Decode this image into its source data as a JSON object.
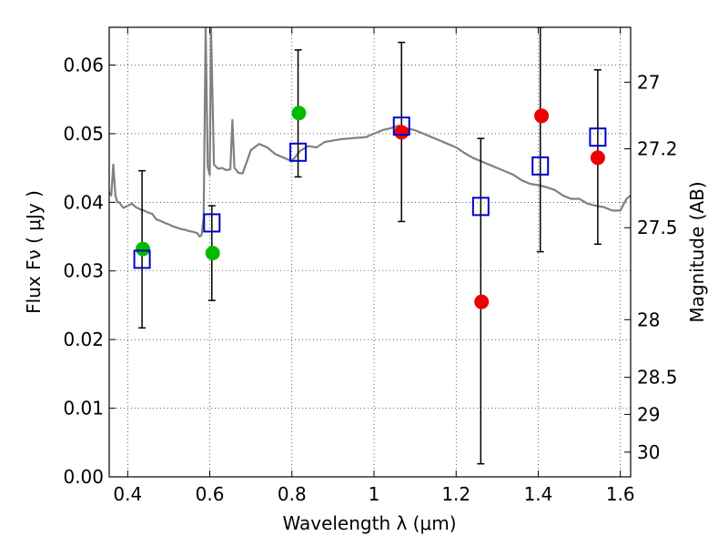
{
  "chart_data": {
    "type": "scatter",
    "xlabel": "Wavelength  λ (μm)",
    "ylabel": "Flux  Fν  ( μJy )",
    "y2label": "Magnitude (AB)",
    "xlim": [
      0.355,
      1.625
    ],
    "ylim": [
      0.0,
      0.0655
    ],
    "grid": true,
    "x_ticks": [
      0.4,
      0.6,
      0.8,
      1.0,
      1.2,
      1.4,
      1.6
    ],
    "x_tick_labels": [
      "0.4",
      "0.6",
      "0.8",
      "1",
      "1.2",
      "1.4",
      "1.6"
    ],
    "y_ticks": [
      0.0,
      0.01,
      0.02,
      0.03,
      0.04,
      0.05,
      0.06
    ],
    "y_tick_labels": [
      "0.00",
      "0.01",
      "0.02",
      "0.03",
      "0.04",
      "0.05",
      "0.06"
    ],
    "y2_ticks": [
      {
        "label": "27",
        "flux": 0.0575
      },
      {
        "label": "27.2",
        "flux": 0.0478
      },
      {
        "label": "27.5",
        "flux": 0.0363
      },
      {
        "label": "28",
        "flux": 0.0229
      },
      {
        "label": "28.5",
        "flux": 0.0145
      },
      {
        "label": "29",
        "flux": 0.0091
      },
      {
        "label": "30",
        "flux": 0.0036
      }
    ],
    "series": [
      {
        "marker": "square",
        "color": "#0000cc",
        "x": [
          0.435,
          0.605,
          0.815,
          1.067,
          1.26,
          1.405,
          1.545
        ],
        "y": [
          0.0317,
          0.037,
          0.0473,
          0.0511,
          0.0394,
          0.0453,
          0.0495
        ],
        "yerr_low": [
          0.0217,
          0.0257,
          0.0437,
          0.0372,
          0.0019,
          0.0328,
          0.0339
        ],
        "yerr_high": [
          0.0446,
          0.0395,
          0.0622,
          0.0633,
          0.0493,
          0.0655,
          0.0593
        ]
      },
      {
        "marker": "circle",
        "color": "#00bb00",
        "x": [
          0.437,
          0.607,
          0.817
        ],
        "y": [
          0.0332,
          0.0326,
          0.053
        ]
      },
      {
        "marker": "circle",
        "color": "#ee0000",
        "x": [
          1.067,
          1.262,
          1.408,
          1.545
        ],
        "y": [
          0.0502,
          0.0255,
          0.0526,
          0.0465
        ]
      },
      {
        "type": "line",
        "color": "#808080",
        "x": [
          0.355,
          0.36,
          0.365,
          0.37,
          0.375,
          0.38,
          0.385,
          0.39,
          0.4,
          0.41,
          0.42,
          0.43,
          0.44,
          0.45,
          0.46,
          0.47,
          0.48,
          0.49,
          0.5,
          0.51,
          0.52,
          0.53,
          0.54,
          0.55,
          0.56,
          0.57,
          0.575,
          0.58,
          0.585,
          0.59,
          0.595,
          0.6,
          0.603,
          0.61,
          0.62,
          0.63,
          0.64,
          0.65,
          0.655,
          0.66,
          0.67,
          0.68,
          0.7,
          0.72,
          0.74,
          0.76,
          0.78,
          0.8,
          0.82,
          0.84,
          0.86,
          0.88,
          0.9,
          0.92,
          0.94,
          0.96,
          0.98,
          1.0,
          1.02,
          1.04,
          1.06,
          1.08,
          1.1,
          1.12,
          1.14,
          1.16,
          1.18,
          1.2,
          1.22,
          1.24,
          1.26,
          1.28,
          1.3,
          1.32,
          1.34,
          1.36,
          1.38,
          1.4,
          1.42,
          1.44,
          1.46,
          1.48,
          1.5,
          1.52,
          1.54,
          1.56,
          1.58,
          1.6,
          1.615,
          1.625
        ],
        "y": [
          0.0415,
          0.041,
          0.0455,
          0.041,
          0.04,
          0.04,
          0.0395,
          0.0392,
          0.0395,
          0.0398,
          0.0393,
          0.039,
          0.0388,
          0.0385,
          0.0383,
          0.0375,
          0.0373,
          0.037,
          0.0368,
          0.0365,
          0.0363,
          0.0361,
          0.036,
          0.0358,
          0.0357,
          0.0355,
          0.035,
          0.0352,
          0.0378,
          0.0655,
          0.0452,
          0.044,
          0.0655,
          0.0455,
          0.0449,
          0.045,
          0.0447,
          0.0448,
          0.052,
          0.045,
          0.0443,
          0.0442,
          0.0476,
          0.0485,
          0.048,
          0.047,
          0.0465,
          0.046,
          0.0475,
          0.0482,
          0.048,
          0.0488,
          0.049,
          0.0492,
          0.0493,
          0.0494,
          0.0495,
          0.05,
          0.0505,
          0.0508,
          0.0512,
          0.0508,
          0.0505,
          0.05,
          0.0495,
          0.049,
          0.0485,
          0.048,
          0.0472,
          0.0465,
          0.046,
          0.0455,
          0.045,
          0.0445,
          0.044,
          0.0432,
          0.0427,
          0.0425,
          0.0422,
          0.0418,
          0.041,
          0.0405,
          0.0405,
          0.0398,
          0.0395,
          0.0393,
          0.0388,
          0.0388,
          0.0405,
          0.041
        ]
      }
    ]
  }
}
